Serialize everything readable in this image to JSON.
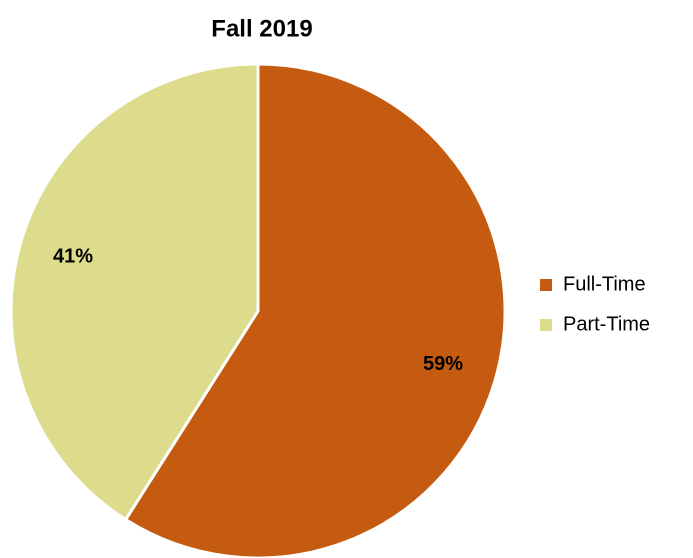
{
  "chart_data": {
    "type": "pie",
    "title": "Fall 2019",
    "categories": [
      "Full-Time",
      "Part-Time"
    ],
    "values": [
      59,
      41
    ],
    "value_labels": [
      "59%",
      "41%"
    ],
    "colors": [
      "#c55a11",
      "#dcdc8c"
    ]
  }
}
